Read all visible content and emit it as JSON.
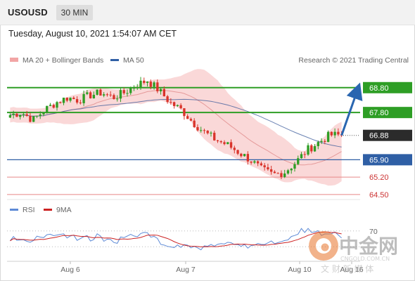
{
  "header": {
    "symbol": "USOUSD",
    "timeframe": "30 MIN"
  },
  "datetime": "Tuesday, August 10, 2021 1:54:07 AM CET",
  "legend": {
    "ma20_label": "MA 20 + Bollinger Bands",
    "ma50_label": "MA 50",
    "credit": "Research © 2021 Trading Central"
  },
  "rsi_legend": {
    "rsi_label": "RSI",
    "ma9_label": "9MA"
  },
  "colors": {
    "bullish": "#2e9e25",
    "bearish": "#d9342b",
    "support": "#2f5fa5",
    "pivot_line": "#e88888",
    "price_tag": "#2b2b2b",
    "arrow": "#2a66b0",
    "bollinger": "#f8c8c8",
    "ma20": "#e59a9a",
    "ma50": "#3a5a9a",
    "rsi": "#5d8ad6",
    "ma9": "#cc2222"
  },
  "chart_data": {
    "type": "candlestick",
    "symbol": "USOUSD",
    "interval": "30 MIN",
    "ylim": [
      64.3,
      69.5
    ],
    "x_ticks": [
      "Aug 6",
      "Aug 7",
      "Aug 10",
      "Aug 16"
    ],
    "current_price": 66.88,
    "levels": [
      {
        "value": 68.8,
        "label": "68.80",
        "role": "resistance"
      },
      {
        "value": 67.8,
        "label": "67.80",
        "role": "resistance"
      },
      {
        "value": 65.9,
        "label": "65.90",
        "role": "pivot"
      },
      {
        "value": 65.2,
        "label": "65.20",
        "role": "support"
      },
      {
        "value": 64.5,
        "label": "64.50",
        "role": "support"
      }
    ],
    "price_path": [
      67.7,
      67.8,
      67.5,
      67.9,
      68.2,
      68.4,
      68.3,
      68.5,
      68.6,
      68.4,
      68.6,
      68.9,
      69.1,
      68.7,
      68.2,
      67.9,
      67.4,
      67.0,
      66.7,
      66.5,
      66.2,
      65.9,
      65.5,
      65.3,
      65.4,
      65.8,
      66.3,
      66.6,
      66.9,
      66.88
    ],
    "rsi_level": 70,
    "rsi_level_label": "70",
    "projection": {
      "from": 66.88,
      "to": 68.8
    }
  },
  "watermark": {
    "brand": "中金网",
    "url": "CNGOLD.COM.CN",
    "slogan": "文 财 新 媒 体"
  }
}
